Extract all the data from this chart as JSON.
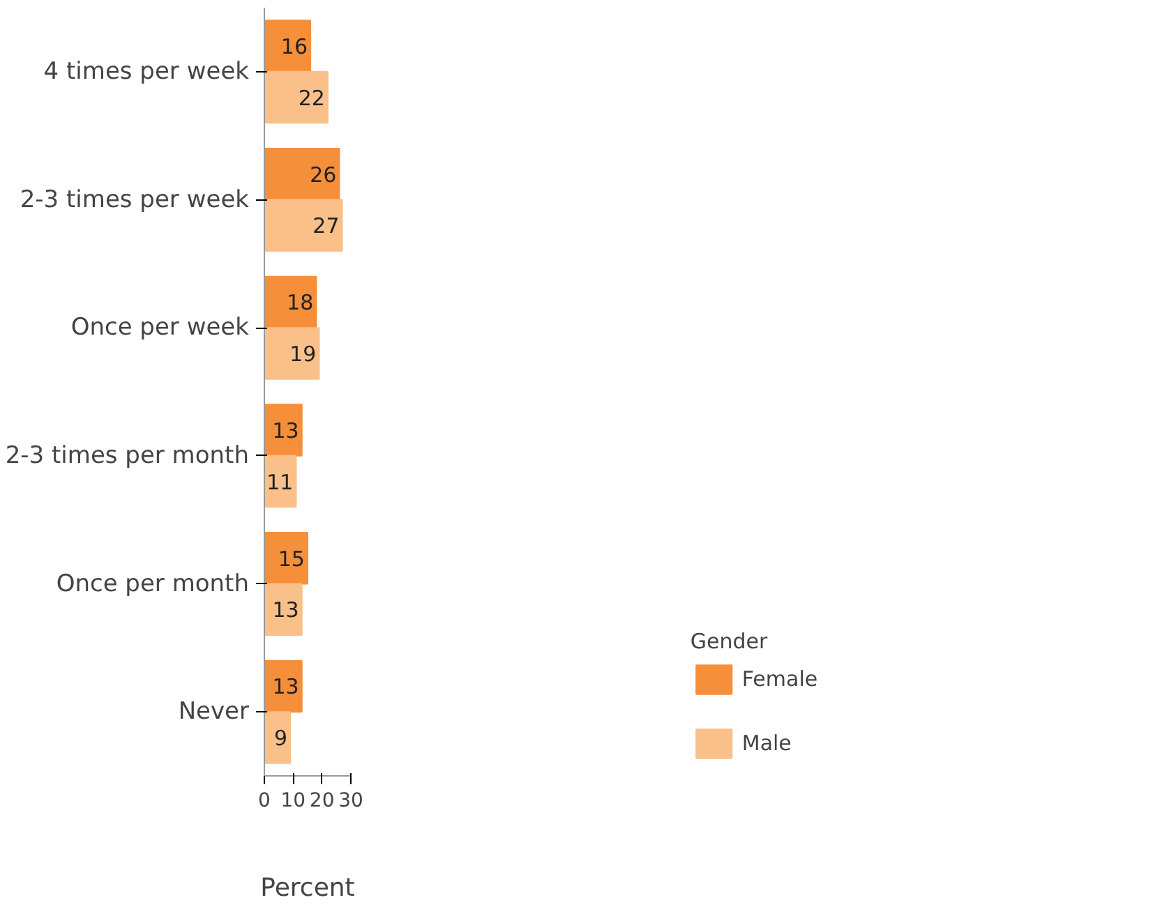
{
  "chart_data": {
    "type": "bar",
    "orientation": "horizontal",
    "xlabel": "Percent",
    "legend_title": "Gender",
    "legend": "right",
    "categories": [
      "4 times per week",
      "2-3 times per week",
      "Once per week",
      "2-3 times per month",
      "Once per month",
      "Never"
    ],
    "series": [
      {
        "name": "Female",
        "color": "#f68f3a",
        "values": [
          16,
          26,
          18,
          13,
          15,
          13
        ]
      },
      {
        "name": "Male",
        "color": "#f9c08a",
        "values": [
          22,
          27,
          19,
          11,
          13,
          9
        ]
      }
    ],
    "xlim": [
      0,
      30
    ],
    "xticks": [
      0,
      10,
      20,
      30
    ],
    "grid": false,
    "data_labels": true
  }
}
